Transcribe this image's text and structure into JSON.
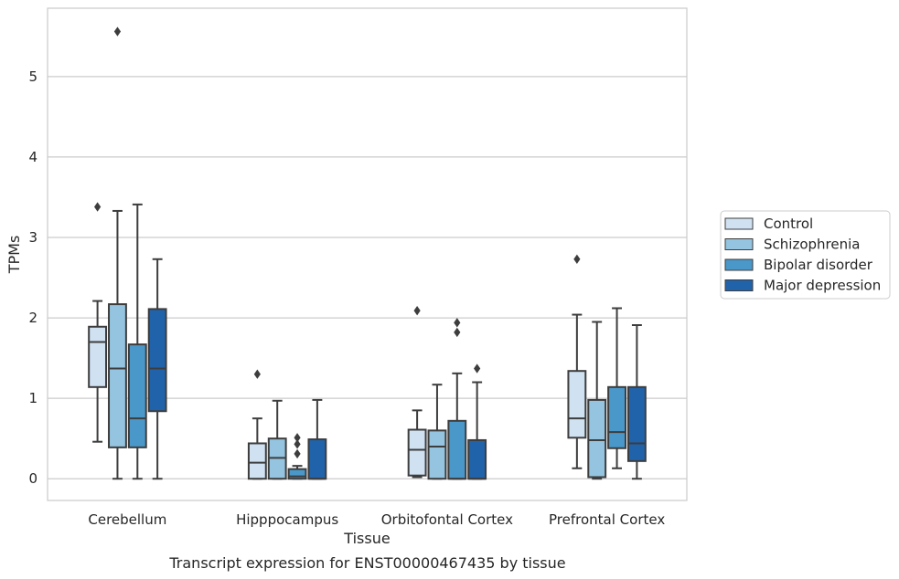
{
  "caption": "Transcript expression for ENST00000467435 by tissue",
  "chart_data": {
    "type": "box",
    "xlabel": "Tissue",
    "ylabel": "TPMs",
    "ylim": [
      -0.27,
      5.85
    ],
    "yticks": [
      0,
      1,
      2,
      3,
      4,
      5
    ],
    "grid": "horizontal",
    "legend_position": "right",
    "categories": [
      "Cerebellum",
      "Hipppocampus",
      "Orbitofontal Cortex",
      "Prefrontal Cortex"
    ],
    "series": [
      {
        "name": "Control",
        "color": "#d0e1f2",
        "boxes": [
          {
            "whislo": 0.46,
            "q1": 1.14,
            "med": 1.7,
            "q3": 1.89,
            "whishi": 2.21,
            "fliers": [
              3.38
            ]
          },
          {
            "whislo": 0.0,
            "q1": 0.0,
            "med": 0.2,
            "q3": 0.44,
            "whishi": 0.75,
            "fliers": [
              1.3
            ]
          },
          {
            "whislo": 0.02,
            "q1": 0.04,
            "med": 0.36,
            "q3": 0.61,
            "whishi": 0.85,
            "fliers": [
              2.09
            ]
          },
          {
            "whislo": 0.13,
            "q1": 0.51,
            "med": 0.75,
            "q3": 1.34,
            "whishi": 2.04,
            "fliers": [
              2.73
            ]
          }
        ]
      },
      {
        "name": "Schizophrenia",
        "color": "#94c4df",
        "boxes": [
          {
            "whislo": 0.0,
            "q1": 0.39,
            "med": 1.37,
            "q3": 2.17,
            "whishi": 3.33,
            "fliers": [
              5.56
            ]
          },
          {
            "whislo": 0.0,
            "q1": 0.0,
            "med": 0.26,
            "q3": 0.5,
            "whishi": 0.97,
            "fliers": []
          },
          {
            "whislo": 0.0,
            "q1": 0.0,
            "med": 0.4,
            "q3": 0.6,
            "whishi": 1.17,
            "fliers": []
          },
          {
            "whislo": 0.0,
            "q1": 0.02,
            "med": 0.48,
            "q3": 0.98,
            "whishi": 1.95,
            "fliers": []
          }
        ]
      },
      {
        "name": "Bipolar disorder",
        "color": "#4a98c9",
        "boxes": [
          {
            "whislo": 0.0,
            "q1": 0.39,
            "med": 0.75,
            "q3": 1.67,
            "whishi": 3.41,
            "fliers": []
          },
          {
            "whislo": 0.0,
            "q1": 0.0,
            "med": 0.03,
            "q3": 0.12,
            "whishi": 0.16,
            "fliers": [
              0.31,
              0.43,
              0.51
            ]
          },
          {
            "whislo": 0.0,
            "q1": 0.0,
            "med": 0.0,
            "q3": 0.72,
            "whishi": 1.31,
            "fliers": [
              1.82,
              1.94
            ]
          },
          {
            "whislo": 0.13,
            "q1": 0.38,
            "med": 0.58,
            "q3": 1.14,
            "whishi": 2.12,
            "fliers": []
          }
        ]
      },
      {
        "name": "Major depression",
        "color": "#2163aa",
        "boxes": [
          {
            "whislo": 0.0,
            "q1": 0.84,
            "med": 1.37,
            "q3": 2.11,
            "whishi": 2.73,
            "fliers": []
          },
          {
            "whislo": 0.0,
            "q1": 0.0,
            "med": 0.0,
            "q3": 0.49,
            "whishi": 0.98,
            "fliers": []
          },
          {
            "whislo": 0.0,
            "q1": 0.0,
            "med": 0.0,
            "q3": 0.48,
            "whishi": 1.2,
            "fliers": [
              1.37
            ]
          },
          {
            "whislo": 0.0,
            "q1": 0.22,
            "med": 0.44,
            "q3": 1.14,
            "whishi": 1.91,
            "fliers": []
          }
        ]
      }
    ]
  }
}
